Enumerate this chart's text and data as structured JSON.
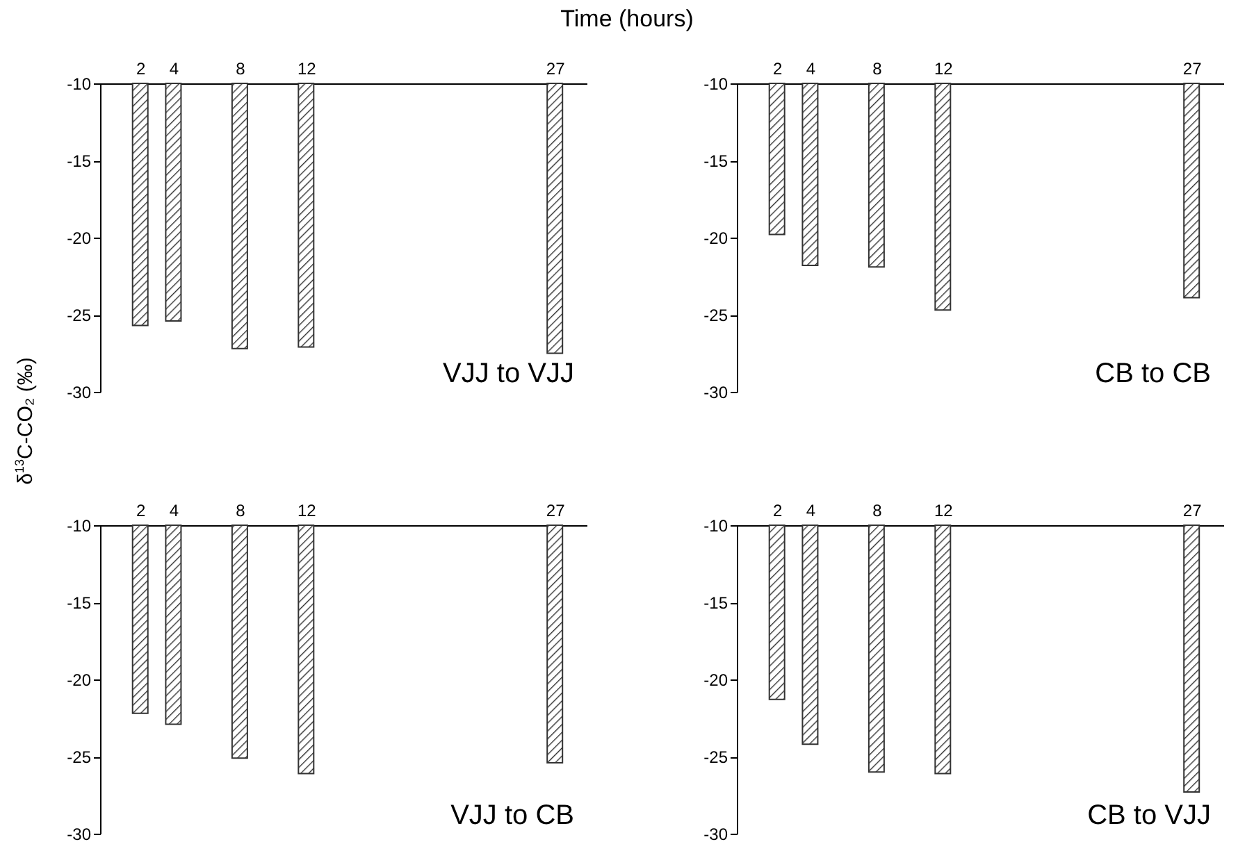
{
  "chart_data": [
    {
      "type": "bar",
      "xlabel": "Time (hours)",
      "ylabel": "δ$^{13}$C-CO₂ (‰)",
      "x": [
        2,
        4,
        8,
        12,
        27
      ],
      "values": [
        -25.7,
        -25.4,
        -27.2,
        -27.1,
        -27.5
      ],
      "color": "#333333",
      "xlim": [
        0,
        28.5
      ],
      "xticks": [
        2,
        4,
        8,
        12,
        27
      ],
      "ylim": [
        -30,
        -10
      ],
      "yticks": [
        -30,
        -25,
        -20,
        -15,
        -10
      ],
      "annotations": [
        "VJJ to VJJ"
      ]
    },
    {
      "type": "bar",
      "x": [
        2,
        4,
        8,
        12,
        27
      ],
      "values": [
        -19.8,
        -21.8,
        -21.9,
        -24.7,
        -23.9
      ],
      "color": "#333333",
      "xlim": [
        0,
        28.5
      ],
      "xticks": [
        2,
        4,
        8,
        12,
        27
      ],
      "ylim": [
        -30,
        -10
      ],
      "yticks": [
        -30,
        -25,
        -20,
        -15,
        -10
      ],
      "annotations": [
        "CB to CB"
      ]
    },
    {
      "type": "bar",
      "x": [
        2,
        4,
        8,
        12,
        27
      ],
      "values": [
        -22.2,
        -22.9,
        -25.1,
        -26.1,
        -25.4
      ],
      "color": "#333333",
      "xlim": [
        0,
        28.5
      ],
      "xticks": [
        2,
        4,
        8,
        12,
        27
      ],
      "ylim": [
        -30,
        -10
      ],
      "yticks": [
        -30,
        -25,
        -20,
        -15,
        -10
      ],
      "annotations": [
        "VJJ to CB"
      ]
    },
    {
      "type": "bar",
      "x": [
        2,
        4,
        8,
        12,
        27
      ],
      "values": [
        -21.3,
        -24.2,
        -26.0,
        -26.1,
        -27.3
      ],
      "color": "#333333",
      "xlim": [
        0,
        28.5
      ],
      "xticks": [
        2,
        4,
        8,
        12,
        27
      ],
      "ylim": [
        -30,
        -10
      ],
      "yticks": [
        -30,
        -25,
        -20,
        -15,
        -10
      ],
      "annotations": [
        "CB  to VJJ"
      ]
    }
  ]
}
